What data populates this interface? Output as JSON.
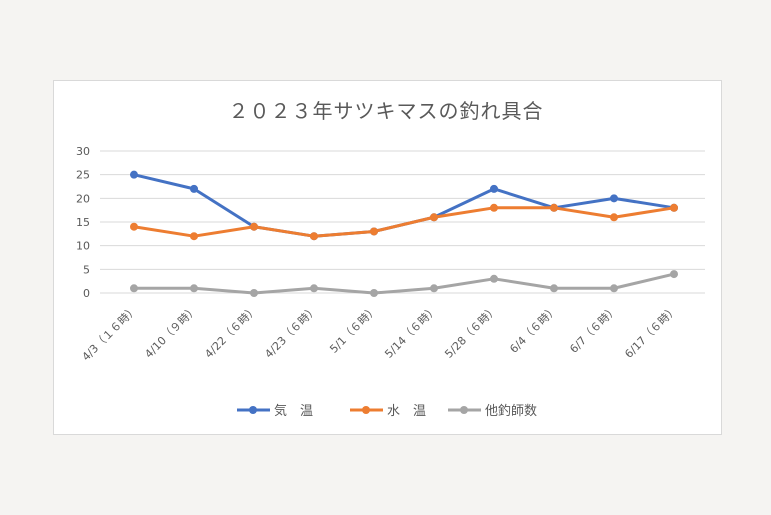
{
  "chart_data": {
    "type": "line",
    "title": "２０２３年サツキマスの釣れ具合",
    "categories": [
      "4/3（１６時）",
      "4/10（９時）",
      "4/22（６時）",
      "4/23（６時）",
      "5/1（６時）",
      "5/14（６時）",
      "5/28（６時）",
      "6/4（６時）",
      "6/7（６時）",
      "6/17（６時）"
    ],
    "ylim": [
      0,
      30
    ],
    "yticks": [
      0,
      5,
      10,
      15,
      20,
      25,
      30
    ],
    "grid": true,
    "legend": "bottom",
    "series": [
      {
        "name": "気　温",
        "color": "#4472c4",
        "values": [
          25,
          22,
          14,
          12,
          13,
          16,
          22,
          18,
          20,
          18
        ]
      },
      {
        "name": "水　温",
        "color": "#ed7d31",
        "values": [
          14,
          12,
          14,
          12,
          13,
          16,
          18,
          18,
          16,
          18
        ]
      },
      {
        "name": "他釣師数",
        "color": "#a5a5a5",
        "values": [
          1,
          1,
          0,
          1,
          0,
          1,
          3,
          1,
          1,
          4
        ]
      }
    ]
  }
}
